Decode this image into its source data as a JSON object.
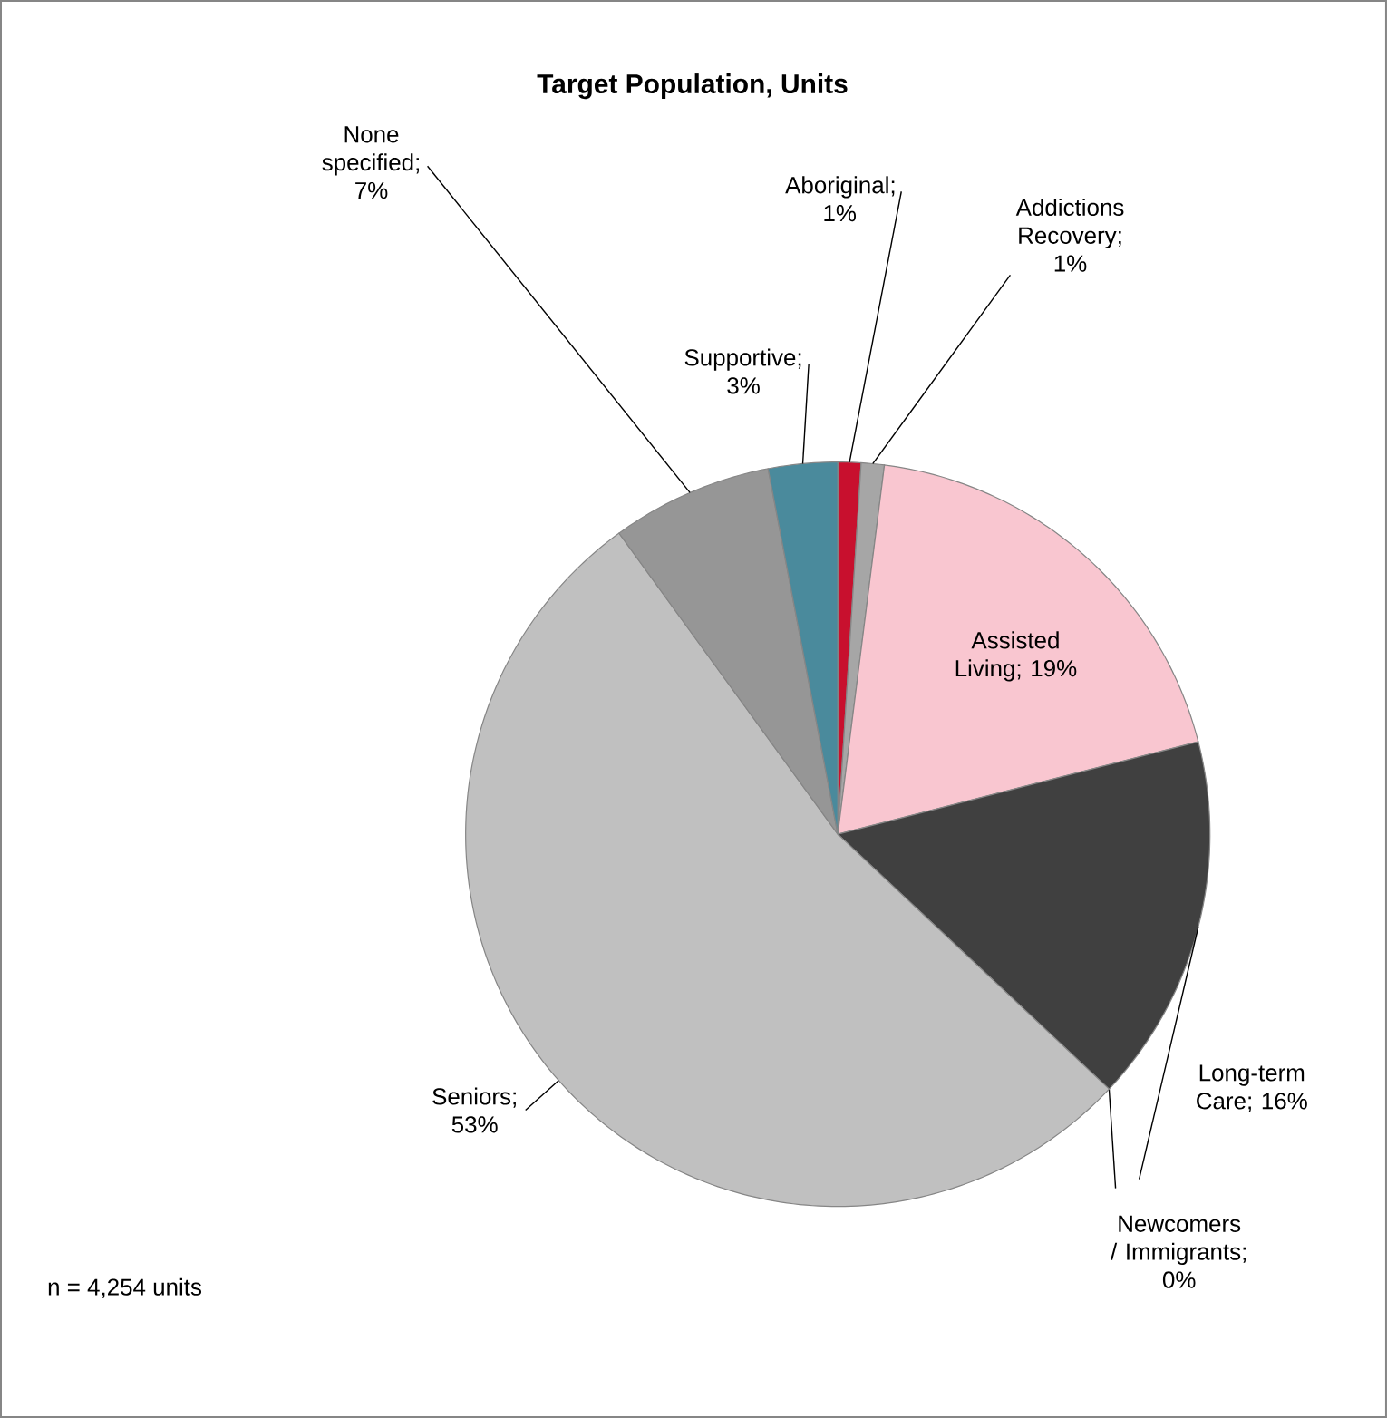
{
  "chart_data": {
    "type": "pie",
    "title": "Target Population, Units",
    "categories": [
      "Aboriginal",
      "Addictions Recovery",
      "Assisted Living",
      "Long-term Care",
      "Newcomers / Immigrants",
      "Seniors",
      "None specified",
      "Supportive"
    ],
    "value_labels": [
      "; 1%",
      "; 1%",
      "; 19%",
      "; 16%",
      "; 0%",
      "; 53%",
      "; 7%",
      "; 3%"
    ],
    "values": [
      1,
      1,
      19,
      16,
      0,
      53,
      7,
      3
    ],
    "colors": [
      "#c8102e",
      "#a6a6a6",
      "#f9c6d0",
      "#404040",
      "#7f7f7f",
      "#c0c0c0",
      "#969696",
      "#4a8a9c"
    ],
    "data_labels": true,
    "annotations": [
      "n = 4,254 units"
    ]
  }
}
